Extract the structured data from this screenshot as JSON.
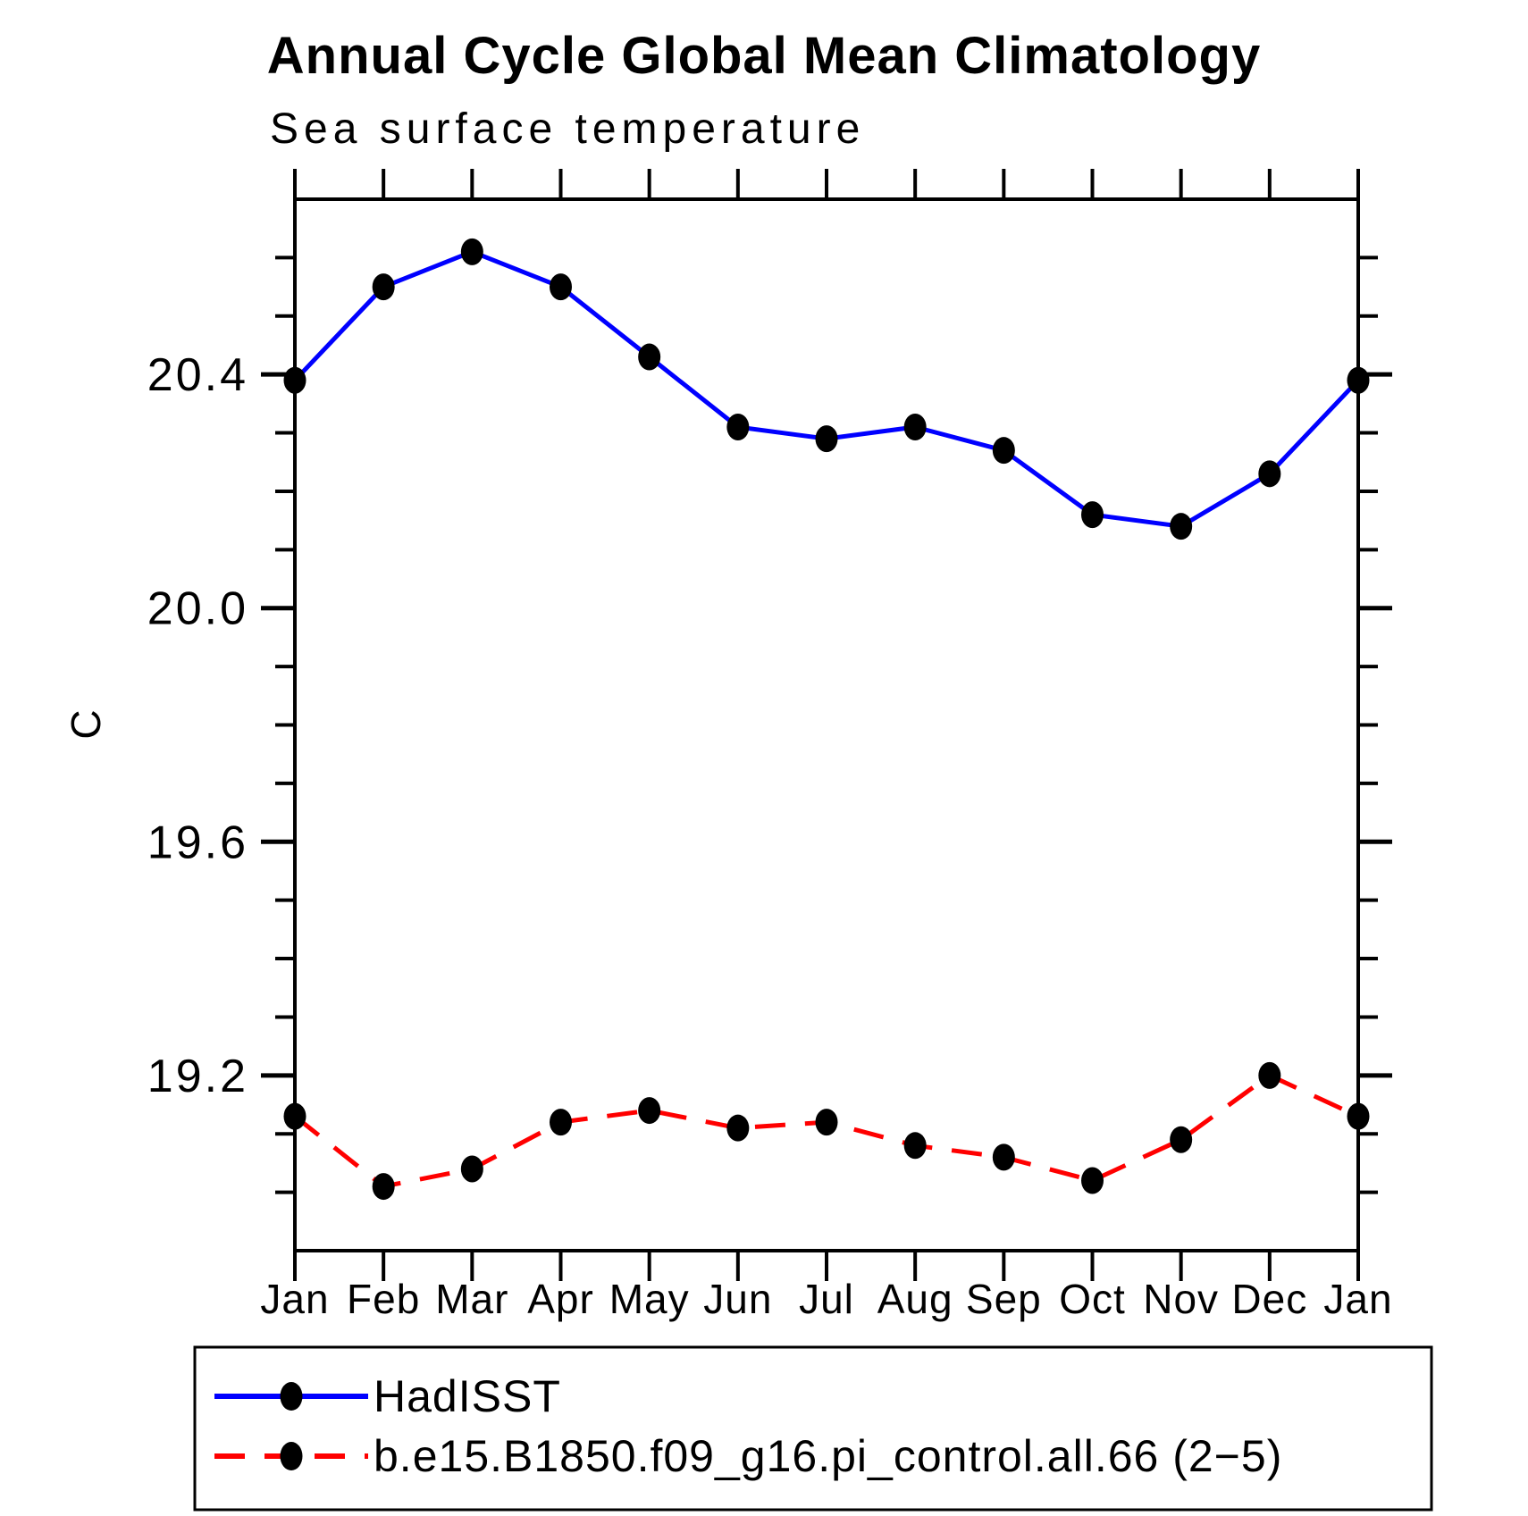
{
  "figure": {
    "title": "Annual Cycle Global Mean Climatology",
    "subtitle": "Sea surface temperature",
    "y_axis_label": "C"
  },
  "chart_data": {
    "type": "line",
    "title": "Annual Cycle Global Mean Climatology",
    "subtitle": "Sea surface temperature",
    "xlabel": "",
    "ylabel": "C",
    "categories": [
      "Jan",
      "Feb",
      "Mar",
      "Apr",
      "May",
      "Jun",
      "Jul",
      "Aug",
      "Sep",
      "Oct",
      "Nov",
      "Dec",
      "Jan"
    ],
    "series": [
      {
        "name": "HadISST",
        "color": "#0000ff",
        "line_style": "solid",
        "marker": "filled-circle",
        "marker_color": "#000000",
        "values": [
          20.39,
          20.55,
          20.61,
          20.55,
          20.43,
          20.31,
          20.29,
          20.31,
          20.27,
          20.16,
          20.14,
          20.23,
          20.39
        ]
      },
      {
        "name": "b.e15.B1850.f09_g16.pi_control.all.66 (2−5)",
        "color": "#ff0000",
        "line_style": "dashed",
        "marker": "filled-circle",
        "marker_color": "#000000",
        "values": [
          19.13,
          19.01,
          19.04,
          19.12,
          19.14,
          19.11,
          19.12,
          19.08,
          19.06,
          19.02,
          19.09,
          19.2,
          19.13
        ]
      }
    ],
    "ylim": [
      18.9,
      20.7
    ],
    "ytick_major": [
      19.2,
      19.6,
      20.0,
      20.4
    ],
    "ytick_major_labels": [
      "19.2",
      "19.6",
      "20.0",
      "20.4"
    ],
    "ytick_minor_step": 0.1,
    "grid": false,
    "axis_color": "#000000",
    "legend_position": "bottom"
  }
}
